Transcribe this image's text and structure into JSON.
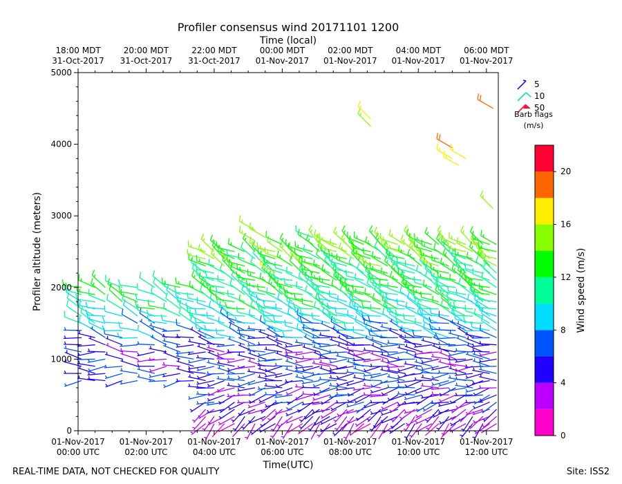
{
  "title": "Profiler consensus wind 20171101 1200",
  "top_axis_label": "Time (local)",
  "bottom_axis_label": "Time(UTC)",
  "y_axis_label": "Profiler altitude (meters)",
  "colorbar_label": "Wind speed (m/s)",
  "barb_legend": {
    "title": "Barb flags",
    "units": "(m/s)",
    "entries": [
      {
        "label": "5",
        "color": "#1a14ff"
      },
      {
        "label": "10",
        "color": "#00ee99"
      },
      {
        "label": "50",
        "color": "#ff1133"
      }
    ]
  },
  "footer": {
    "left": "REAL-TIME DATA, NOT CHECKED FOR QUALITY",
    "right": "Site: ISS2"
  },
  "chart_data": {
    "type": "wind_barbs",
    "title": "Profiler consensus wind 20171101 1200",
    "xlabel": "Time(UTC)",
    "x2label": "Time (local)",
    "ylabel": "Profiler altitude (meters)",
    "xlim_hours": [
      0,
      12.35
    ],
    "ylim": [
      0,
      5000
    ],
    "yticks": [
      0,
      1000,
      2000,
      3000,
      4000,
      5000
    ],
    "bottom_ticks": [
      {
        "hour": 0,
        "line1": "01-Nov-2017",
        "line2": "00:00 UTC"
      },
      {
        "hour": 2,
        "line1": "01-Nov-2017",
        "line2": "02:00 UTC"
      },
      {
        "hour": 4,
        "line1": "01-Nov-2017",
        "line2": "04:00 UTC"
      },
      {
        "hour": 6,
        "line1": "01-Nov-2017",
        "line2": "06:00 UTC"
      },
      {
        "hour": 8,
        "line1": "01-Nov-2017",
        "line2": "08:00 UTC"
      },
      {
        "hour": 10,
        "line1": "01-Nov-2017",
        "line2": "10:00 UTC"
      },
      {
        "hour": 12,
        "line1": "01-Nov-2017",
        "line2": "12:00 UTC"
      }
    ],
    "top_ticks": [
      {
        "hour": 0,
        "line1": "18:00 MDT",
        "line2": "31-Oct-2017"
      },
      {
        "hour": 2,
        "line1": "20:00 MDT",
        "line2": "31-Oct-2017"
      },
      {
        "hour": 4,
        "line1": "22:00 MDT",
        "line2": "31-Oct-2017"
      },
      {
        "hour": 6,
        "line1": "00:00 MDT",
        "line2": "01-Nov-2017"
      },
      {
        "hour": 8,
        "line1": "02:00 MDT",
        "line2": "01-Nov-2017"
      },
      {
        "hour": 10,
        "line1": "04:00 MDT",
        "line2": "01-Nov-2017"
      },
      {
        "hour": 12,
        "line1": "06:00 MDT",
        "line2": "01-Nov-2017"
      }
    ],
    "colorbar": {
      "min": 0,
      "max": 22,
      "step": 2,
      "ticks": [
        0,
        4,
        8,
        12,
        16,
        20
      ],
      "colors": [
        "#ff00cc",
        "#bb00ff",
        "#2200ff",
        "#0055ff",
        "#00ddff",
        "#00ff99",
        "#00ff00",
        "#88ff00",
        "#ffee00",
        "#ff6600",
        "#ff0033"
      ]
    },
    "columns_hours": [
      0.1,
      0.5,
      0.8,
      1.3,
      1.75,
      2.25,
      2.6,
      3.0,
      3.4,
      3.75,
      4.0,
      4.3,
      4.6,
      4.9,
      5.2,
      5.5,
      5.8,
      6.0,
      6.3,
      6.6,
      6.9,
      7.1,
      7.4,
      7.6,
      7.9,
      8.1,
      8.4,
      8.6,
      8.9,
      9.1,
      9.4,
      9.6,
      9.9,
      10.1,
      10.4,
      10.6,
      10.9,
      11.1,
      11.4,
      11.6,
      11.9,
      12.1,
      12.3
    ],
    "wind_profile": [
      {
        "z": 100,
        "speed": 3,
        "dir": 225
      },
      {
        "z": 200,
        "speed": 4,
        "dir": 230
      },
      {
        "z": 300,
        "speed": 4,
        "dir": 240
      },
      {
        "z": 400,
        "speed": 5,
        "dir": 250
      },
      {
        "z": 500,
        "speed": 5,
        "dir": 255
      },
      {
        "z": 600,
        "speed": 5,
        "dir": 260
      },
      {
        "z": 700,
        "speed": 6,
        "dir": 265
      },
      {
        "z": 800,
        "speed": 6,
        "dir": 270
      },
      {
        "z": 900,
        "speed": 5,
        "dir": 270
      },
      {
        "z": 1000,
        "speed": 5,
        "dir": 275
      },
      {
        "z": 1100,
        "speed": 5,
        "dir": 275
      },
      {
        "z": 1200,
        "speed": 6,
        "dir": 280
      },
      {
        "z": 1300,
        "speed": 7,
        "dir": 285
      },
      {
        "z": 1400,
        "speed": 8,
        "dir": 285
      },
      {
        "z": 1500,
        "speed": 9,
        "dir": 290
      },
      {
        "z": 1600,
        "speed": 10,
        "dir": 290
      },
      {
        "z": 1700,
        "speed": 11,
        "dir": 290
      },
      {
        "z": 1800,
        "speed": 11,
        "dir": 295
      },
      {
        "z": 1900,
        "speed": 12,
        "dir": 295
      },
      {
        "z": 2000,
        "speed": 12,
        "dir": 295
      },
      {
        "z": 2100,
        "speed": 12,
        "dir": 295
      },
      {
        "z": 2200,
        "speed": 12,
        "dir": 300
      },
      {
        "z": 2300,
        "speed": 13,
        "dir": 300
      },
      {
        "z": 2400,
        "speed": 13,
        "dir": 300
      },
      {
        "z": 2500,
        "speed": 14,
        "dir": 300
      },
      {
        "z": 2600,
        "speed": 14,
        "dir": 305
      }
    ],
    "upper_winds": [
      {
        "hour": 5.2,
        "z": 2800,
        "speed": 15,
        "dir": 300
      },
      {
        "hour": 5.2,
        "z": 2650,
        "speed": 15,
        "dir": 300
      },
      {
        "hour": 5.5,
        "z": 2700,
        "speed": 14,
        "dir": 300
      },
      {
        "hour": 5.8,
        "z": 2200,
        "speed": 16,
        "dir": 300
      },
      {
        "hour": 6.0,
        "z": 2600,
        "speed": 12,
        "dir": 295
      },
      {
        "hour": 6.9,
        "z": 2700,
        "speed": 10,
        "dir": 290
      },
      {
        "hour": 8.6,
        "z": 4350,
        "speed": 16,
        "dir": 315
      },
      {
        "hour": 8.6,
        "z": 4250,
        "speed": 15,
        "dir": 315
      },
      {
        "hour": 11.0,
        "z": 3950,
        "speed": 18,
        "dir": 300
      },
      {
        "hour": 11.0,
        "z": 3800,
        "speed": 16,
        "dir": 300
      },
      {
        "hour": 11.2,
        "z": 3700,
        "speed": 16,
        "dir": 300
      },
      {
        "hour": 11.4,
        "z": 3800,
        "speed": 17,
        "dir": 300
      },
      {
        "hour": 12.2,
        "z": 3100,
        "speed": 14,
        "dir": 315
      },
      {
        "hour": 12.2,
        "z": 4500,
        "speed": 18,
        "dir": 300
      }
    ]
  }
}
